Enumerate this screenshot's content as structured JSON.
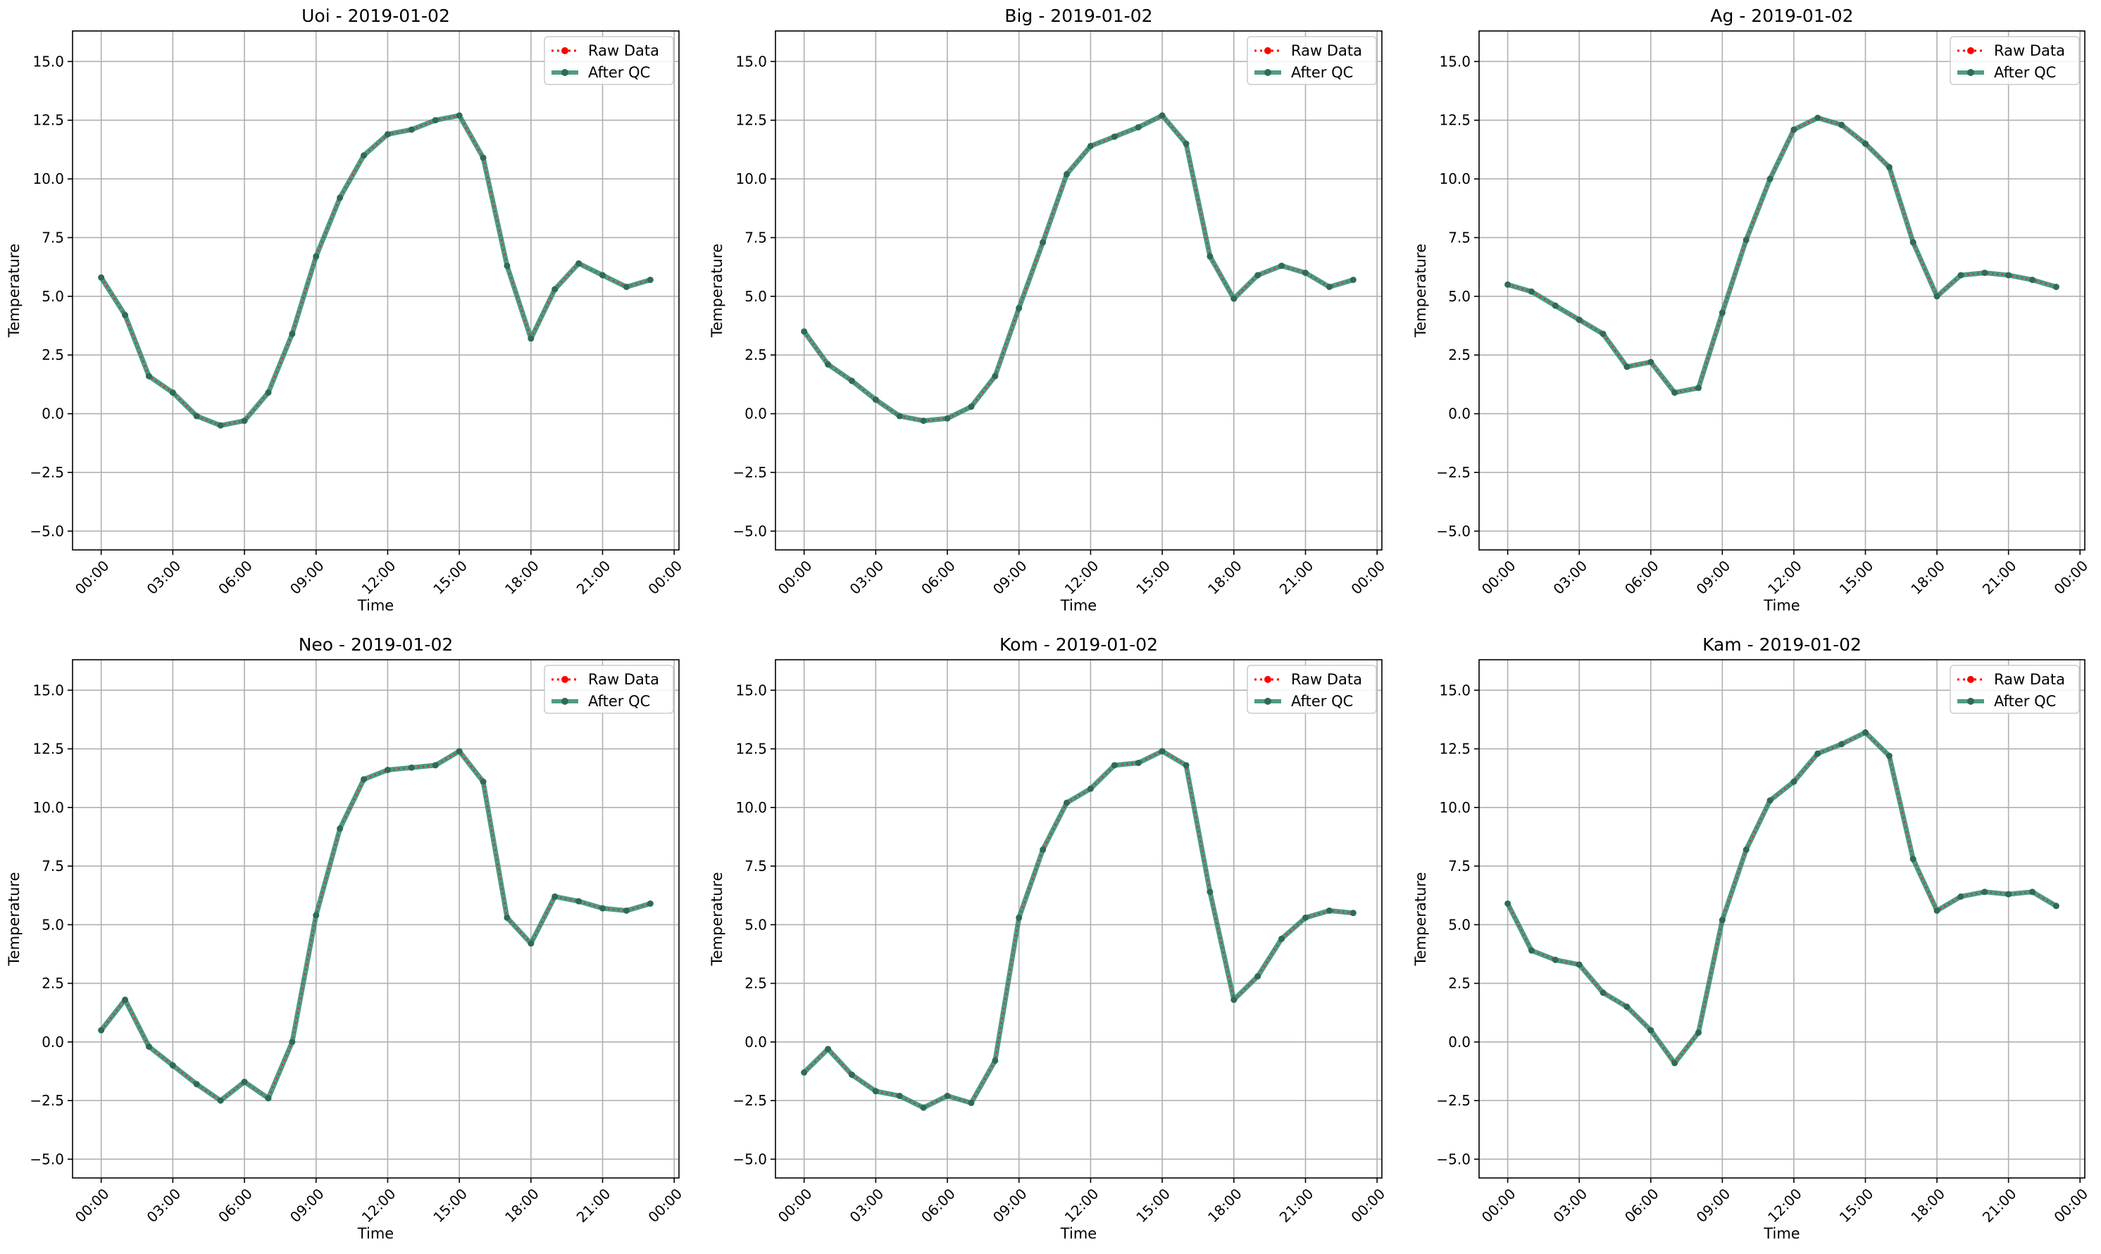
{
  "figure": {
    "x_ticks": [
      "00:00",
      "03:00",
      "06:00",
      "09:00",
      "12:00",
      "15:00",
      "18:00",
      "21:00",
      "00:00"
    ],
    "y_ticks": [
      "−5.0",
      "−2.5",
      "0.0",
      "2.5",
      "5.0",
      "7.5",
      "10.0",
      "12.5",
      "15.0"
    ],
    "legend": {
      "raw_label": "Raw Data",
      "qc_label": "After QC",
      "placement": "upper-right"
    },
    "colors": {
      "raw": "#ff0000",
      "qc": "#2e8b6e",
      "grid": "#b0b0b0"
    }
  },
  "chart_data": [
    {
      "type": "line",
      "title": "Uoi - 2019-01-02",
      "xlabel": "Time",
      "ylabel": "Temperature",
      "xlim": [
        "-01:12",
        "24:12"
      ],
      "ylim": [
        -5.8,
        16.3
      ],
      "grid": true,
      "x": [
        "00:00",
        "01:00",
        "02:00",
        "03:00",
        "04:00",
        "05:00",
        "06:00",
        "07:00",
        "08:00",
        "09:00",
        "10:00",
        "11:00",
        "12:00",
        "13:00",
        "14:00",
        "15:00",
        "16:00",
        "17:00",
        "18:00",
        "19:00",
        "20:00",
        "21:00",
        "22:00",
        "23:00"
      ],
      "series": [
        {
          "name": "Raw Data",
          "values": [
            5.8,
            4.2,
            1.6,
            0.9,
            -0.1,
            -0.5,
            -0.3,
            0.9,
            3.4,
            6.7,
            9.2,
            11.0,
            11.9,
            12.1,
            12.5,
            12.7,
            10.9,
            6.3,
            3.2,
            5.3,
            6.4,
            5.9,
            5.4,
            5.7
          ]
        },
        {
          "name": "After QC",
          "values": [
            5.8,
            4.2,
            1.6,
            0.9,
            -0.1,
            -0.5,
            -0.3,
            0.9,
            3.4,
            6.7,
            9.2,
            11.0,
            11.9,
            12.1,
            12.5,
            12.7,
            10.9,
            6.3,
            3.2,
            5.3,
            6.4,
            5.9,
            5.4,
            5.7
          ]
        }
      ]
    },
    {
      "type": "line",
      "title": "Big - 2019-01-02",
      "xlabel": "Time",
      "ylabel": "Temperature",
      "xlim": [
        "-01:12",
        "24:12"
      ],
      "ylim": [
        -5.8,
        16.3
      ],
      "grid": true,
      "x": [
        "00:00",
        "01:00",
        "02:00",
        "03:00",
        "04:00",
        "05:00",
        "06:00",
        "07:00",
        "08:00",
        "09:00",
        "10:00",
        "11:00",
        "12:00",
        "13:00",
        "14:00",
        "15:00",
        "16:00",
        "17:00",
        "18:00",
        "19:00",
        "20:00",
        "21:00",
        "22:00",
        "23:00"
      ],
      "series": [
        {
          "name": "Raw Data",
          "values": [
            3.5,
            2.1,
            1.4,
            0.6,
            -0.1,
            -0.3,
            -0.2,
            0.3,
            1.6,
            4.5,
            7.3,
            10.2,
            11.4,
            11.8,
            12.2,
            12.7,
            11.5,
            6.7,
            4.9,
            5.9,
            6.3,
            6.0,
            5.4,
            5.7
          ]
        },
        {
          "name": "After QC",
          "values": [
            3.5,
            2.1,
            1.4,
            0.6,
            -0.1,
            -0.3,
            -0.2,
            0.3,
            1.6,
            4.5,
            7.3,
            10.2,
            11.4,
            11.8,
            12.2,
            12.7,
            11.5,
            6.7,
            4.9,
            5.9,
            6.3,
            6.0,
            5.4,
            5.7
          ]
        }
      ]
    },
    {
      "type": "line",
      "title": "Ag - 2019-01-02",
      "xlabel": "Time",
      "ylabel": "Temperature",
      "xlim": [
        "-01:12",
        "24:12"
      ],
      "ylim": [
        -5.8,
        16.3
      ],
      "grid": true,
      "x": [
        "00:00",
        "01:00",
        "02:00",
        "03:00",
        "04:00",
        "05:00",
        "06:00",
        "07:00",
        "08:00",
        "09:00",
        "10:00",
        "11:00",
        "12:00",
        "13:00",
        "14:00",
        "15:00",
        "16:00",
        "17:00",
        "18:00",
        "19:00",
        "20:00",
        "21:00",
        "22:00",
        "23:00"
      ],
      "series": [
        {
          "name": "Raw Data",
          "values": [
            5.5,
            5.2,
            4.6,
            4.0,
            3.4,
            2.0,
            2.2,
            0.9,
            1.1,
            4.3,
            7.4,
            10.0,
            12.1,
            12.6,
            12.3,
            11.5,
            10.5,
            7.3,
            5.0,
            5.9,
            6.0,
            5.9,
            5.7,
            5.4
          ]
        },
        {
          "name": "After QC",
          "values": [
            5.5,
            5.2,
            4.6,
            4.0,
            3.4,
            2.0,
            2.2,
            0.9,
            1.1,
            4.3,
            7.4,
            10.0,
            12.1,
            12.6,
            12.3,
            11.5,
            10.5,
            7.3,
            5.0,
            5.9,
            6.0,
            5.9,
            5.7,
            5.4
          ]
        }
      ]
    },
    {
      "type": "line",
      "title": "Neo - 2019-01-02",
      "xlabel": "Time",
      "ylabel": "Temperature",
      "xlim": [
        "-01:12",
        "24:12"
      ],
      "ylim": [
        -5.8,
        16.3
      ],
      "grid": true,
      "x": [
        "00:00",
        "01:00",
        "02:00",
        "03:00",
        "04:00",
        "05:00",
        "06:00",
        "07:00",
        "08:00",
        "09:00",
        "10:00",
        "11:00",
        "12:00",
        "13:00",
        "14:00",
        "15:00",
        "16:00",
        "17:00",
        "18:00",
        "19:00",
        "20:00",
        "21:00",
        "22:00",
        "23:00"
      ],
      "series": [
        {
          "name": "Raw Data",
          "values": [
            0.5,
            1.8,
            -0.2,
            -1.0,
            -1.8,
            -2.5,
            -1.7,
            -2.4,
            0.0,
            5.4,
            9.1,
            11.2,
            11.6,
            11.7,
            11.8,
            12.4,
            11.1,
            5.3,
            4.2,
            6.2,
            6.0,
            5.7,
            5.6,
            5.9
          ]
        },
        {
          "name": "After QC",
          "values": [
            0.5,
            1.8,
            -0.2,
            -1.0,
            -1.8,
            -2.5,
            -1.7,
            -2.4,
            0.0,
            5.4,
            9.1,
            11.2,
            11.6,
            11.7,
            11.8,
            12.4,
            11.1,
            5.3,
            4.2,
            6.2,
            6.0,
            5.7,
            5.6,
            5.9
          ]
        }
      ]
    },
    {
      "type": "line",
      "title": "Kom - 2019-01-02",
      "xlabel": "Time",
      "ylabel": "Temperature",
      "xlim": [
        "-01:12",
        "24:12"
      ],
      "ylim": [
        -5.8,
        16.3
      ],
      "grid": true,
      "x": [
        "00:00",
        "01:00",
        "02:00",
        "03:00",
        "04:00",
        "05:00",
        "06:00",
        "07:00",
        "08:00",
        "09:00",
        "10:00",
        "11:00",
        "12:00",
        "13:00",
        "14:00",
        "15:00",
        "16:00",
        "17:00",
        "18:00",
        "19:00",
        "20:00",
        "21:00",
        "22:00",
        "23:00"
      ],
      "series": [
        {
          "name": "Raw Data",
          "values": [
            -1.3,
            -0.3,
            -1.4,
            -2.1,
            -2.3,
            -2.8,
            -2.3,
            -2.6,
            -0.8,
            5.3,
            8.2,
            10.2,
            10.8,
            11.8,
            11.9,
            12.4,
            11.8,
            6.4,
            1.8,
            2.8,
            4.4,
            5.3,
            5.6,
            5.5
          ]
        },
        {
          "name": "After QC",
          "values": [
            -1.3,
            -0.3,
            -1.4,
            -2.1,
            -2.3,
            -2.8,
            -2.3,
            -2.6,
            -0.8,
            5.3,
            8.2,
            10.2,
            10.8,
            11.8,
            11.9,
            12.4,
            11.8,
            6.4,
            1.8,
            2.8,
            4.4,
            5.3,
            5.6,
            5.5
          ]
        }
      ]
    },
    {
      "type": "line",
      "title": "Kam - 2019-01-02",
      "xlabel": "Time",
      "ylabel": "Temperature",
      "xlim": [
        "-01:12",
        "24:12"
      ],
      "ylim": [
        -5.8,
        16.3
      ],
      "grid": true,
      "x": [
        "00:00",
        "01:00",
        "02:00",
        "03:00",
        "04:00",
        "05:00",
        "06:00",
        "07:00",
        "08:00",
        "09:00",
        "10:00",
        "11:00",
        "12:00",
        "13:00",
        "14:00",
        "15:00",
        "16:00",
        "17:00",
        "18:00",
        "19:00",
        "20:00",
        "21:00",
        "22:00",
        "23:00"
      ],
      "series": [
        {
          "name": "Raw Data",
          "values": [
            5.9,
            3.9,
            3.5,
            3.3,
            2.1,
            1.5,
            0.5,
            -0.9,
            0.4,
            5.2,
            8.2,
            10.3,
            11.1,
            12.3,
            12.7,
            13.2,
            12.2,
            7.8,
            5.6,
            6.2,
            6.4,
            6.3,
            6.4,
            5.8
          ]
        },
        {
          "name": "After QC",
          "values": [
            5.9,
            3.9,
            3.5,
            3.3,
            2.1,
            1.5,
            0.5,
            -0.9,
            0.4,
            5.2,
            8.2,
            10.3,
            11.1,
            12.3,
            12.7,
            13.2,
            12.2,
            7.8,
            5.6,
            6.2,
            6.4,
            6.3,
            6.4,
            5.8
          ]
        }
      ]
    }
  ]
}
